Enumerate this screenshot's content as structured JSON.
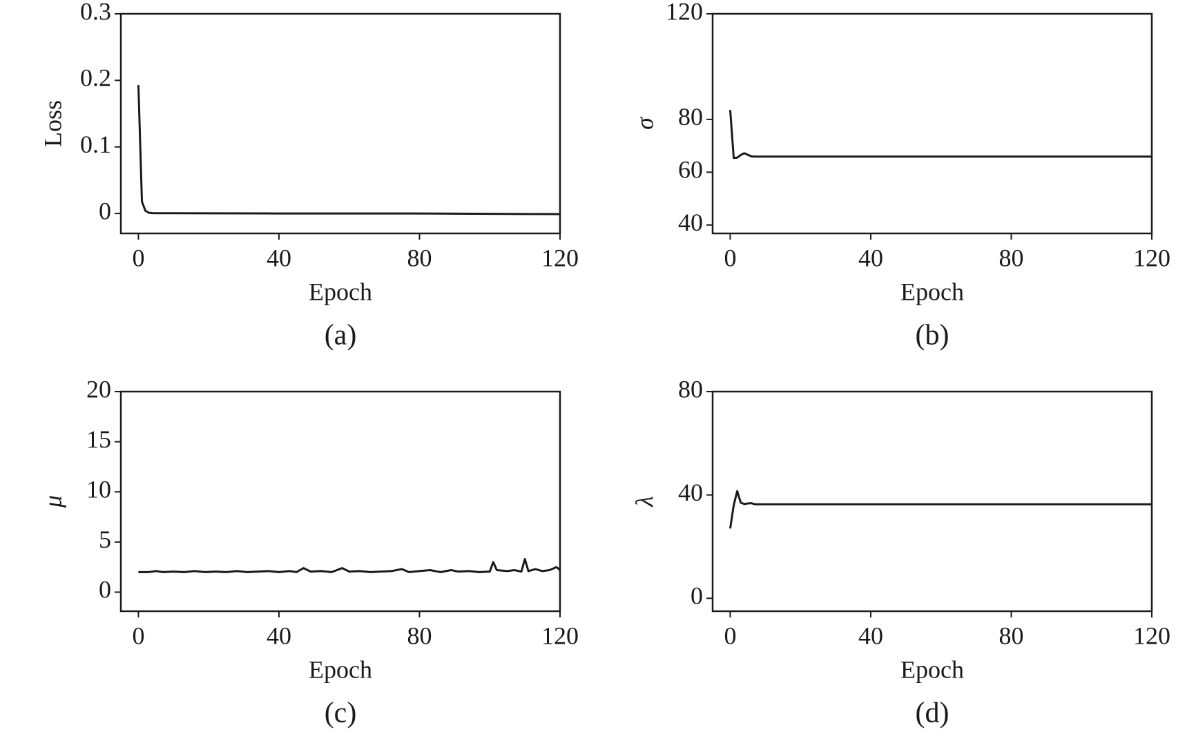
{
  "chart_data": [
    {
      "type": "line",
      "caption": "(a)",
      "xlabel": "Epoch",
      "ylabel": "Loss",
      "x": [
        0,
        1,
        2,
        3,
        4,
        6,
        10,
        20,
        40,
        60,
        80,
        100,
        120
      ],
      "values": [
        0.193,
        0.018,
        0.004,
        0.001,
        0.0005,
        0.0004,
        0.0003,
        0.0002,
        0,
        0,
        0,
        -0.0005,
        -0.001
      ],
      "xlim": [
        -5,
        120
      ],
      "ylim": [
        -0.03,
        0.3
      ],
      "xticks": [
        0,
        40,
        80,
        120
      ],
      "yticks": [
        0,
        0.1,
        0.2,
        0.3
      ],
      "color": "#1a1a1a"
    },
    {
      "type": "line",
      "caption": "(b)",
      "xlabel": "Epoch",
      "ylabel": "σ",
      "x": [
        0,
        1,
        2,
        3,
        4,
        5,
        6,
        7,
        120
      ],
      "values": [
        83.6,
        65.4,
        65.5,
        66.5,
        67.2,
        66.6,
        66,
        65.9,
        65.9
      ],
      "xlim": [
        -5,
        120
      ],
      "ylim": [
        36.8,
        120
      ],
      "xticks": [
        0,
        40,
        80,
        120
      ],
      "yticks": [
        40,
        60,
        80,
        120
      ],
      "color": "#1a1a1a"
    },
    {
      "type": "line",
      "caption": "(c)",
      "xlabel": "Epoch",
      "ylabel": "μ",
      "x": [
        0,
        3,
        5,
        7,
        10,
        13,
        16,
        19,
        22,
        25,
        28,
        31,
        34,
        37,
        40,
        43,
        45,
        47,
        49,
        52,
        55,
        58,
        60,
        63,
        66,
        69,
        72,
        75,
        77,
        80,
        83,
        86,
        89,
        91,
        94,
        97,
        100,
        101,
        102,
        105,
        107,
        109,
        110,
        111,
        113,
        115,
        117,
        119,
        120
      ],
      "values": [
        2,
        2,
        2.1,
        2,
        2.05,
        2,
        2.1,
        2,
        2.05,
        2,
        2.1,
        2,
        2.05,
        2.1,
        2,
        2.1,
        2,
        2.4,
        2.05,
        2.1,
        2,
        2.4,
        2.05,
        2.1,
        2,
        2.05,
        2.1,
        2.3,
        2,
        2.1,
        2.2,
        2,
        2.2,
        2.05,
        2.1,
        2,
        2.05,
        3,
        2.2,
        2.1,
        2.2,
        2.05,
        3.3,
        2.1,
        2.3,
        2.1,
        2.2,
        2.5,
        2.2
      ],
      "xlim": [
        -5,
        120
      ],
      "ylim": [
        -1.9,
        20
      ],
      "xticks": [
        0,
        40,
        80,
        120
      ],
      "yticks": [
        0,
        5,
        10,
        15,
        20
      ],
      "color": "#1a1a1a"
    },
    {
      "type": "line",
      "caption": "(d)",
      "xlabel": "Epoch",
      "ylabel": "λ",
      "x": [
        0,
        1,
        2,
        3,
        4,
        5,
        6,
        7,
        120
      ],
      "values": [
        27,
        36,
        41.5,
        37,
        36.5,
        36.7,
        36.8,
        36.4,
        36.4
      ],
      "xlim": [
        -5,
        120
      ],
      "ylim": [
        -5,
        80
      ],
      "xticks": [
        0,
        40,
        80,
        120
      ],
      "yticks": [
        0,
        40,
        80
      ],
      "color": "#1a1a1a"
    }
  ]
}
